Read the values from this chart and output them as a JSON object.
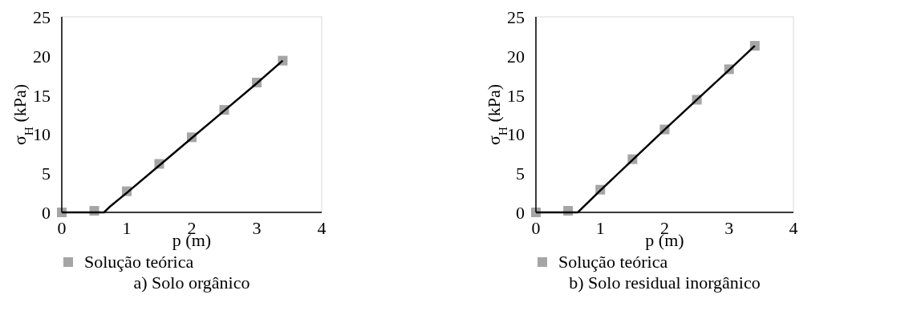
{
  "chart_data": [
    {
      "type": "scatter",
      "title": "a) Solo orgânico",
      "xlabel": "p (m)",
      "ylabel": "σ$_{H}$ (kPa)",
      "xlim": [
        0,
        4
      ],
      "ylim": [
        0,
        25
      ],
      "xticks": [
        0,
        1,
        2,
        3,
        4
      ],
      "yticks": [
        0,
        5,
        10,
        15,
        20,
        25
      ],
      "grid": false,
      "legend": "bottom",
      "series": [
        {
          "name": "Solução teórica",
          "marker": "square",
          "color": "#a5a5a5",
          "x": [
            0,
            0.5,
            1,
            1.5,
            2,
            2.5,
            3,
            3.4
          ],
          "values": [
            0,
            0.2,
            2.7,
            6.2,
            9.6,
            13.1,
            16.6,
            19.4
          ]
        },
        {
          "type": "line",
          "marker": "none",
          "line_style": "solid",
          "color": "#000000",
          "x": [
            0,
            0.65,
            0.75,
            1,
            1.5,
            2,
            2.5,
            3,
            3.4
          ],
          "values": [
            0,
            0,
            0.8,
            2.5,
            6,
            9.5,
            13,
            16.5,
            19.4
          ]
        }
      ]
    },
    {
      "type": "scatter",
      "title": "b) Solo residual inorgânico",
      "xlabel": "p (m)",
      "ylabel": "σ$_{H}$ (kPa)",
      "xlim": [
        0,
        4
      ],
      "ylim": [
        0,
        25
      ],
      "xticks": [
        0,
        1,
        2,
        3,
        4
      ],
      "yticks": [
        0,
        5,
        10,
        15,
        20,
        25
      ],
      "grid": false,
      "legend": "bottom",
      "series": [
        {
          "name": "Solução teórica",
          "marker": "square",
          "color": "#a5a5a5",
          "x": [
            0,
            0.5,
            1,
            1.5,
            2,
            2.5,
            3,
            3.4
          ],
          "values": [
            0,
            0.2,
            2.9,
            6.8,
            10.6,
            14.4,
            18.3,
            21.3
          ]
        },
        {
          "type": "line",
          "marker": "none",
          "line_style": "solid",
          "color": "#000000",
          "x": [
            0,
            0.65,
            0.75,
            1,
            1.5,
            2,
            2.5,
            3,
            3.4
          ],
          "values": [
            0,
            0,
            0.8,
            2.8,
            6.7,
            10.6,
            14.4,
            18.2,
            21.3
          ]
        }
      ]
    }
  ]
}
